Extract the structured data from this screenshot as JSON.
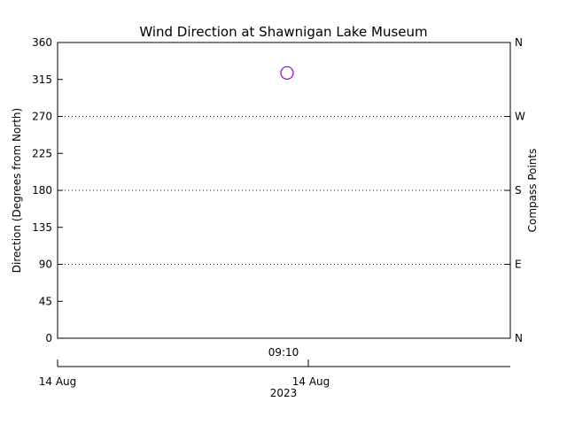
{
  "chart_data": {
    "type": "scatter",
    "title": "Wind Direction at Shawnigan Lake Museum",
    "ylabel": "Direction (Degrees from North)",
    "y2label": "Compass Points",
    "ylim": [
      0,
      360
    ],
    "yticks": [
      "0",
      "45",
      "90",
      "135",
      "180",
      "225",
      "270",
      "315",
      "360"
    ],
    "compass_ticks": [
      {
        "value": 0,
        "label": "N"
      },
      {
        "value": 90,
        "label": "E"
      },
      {
        "value": 180,
        "label": "S"
      },
      {
        "value": 270,
        "label": "W"
      },
      {
        "value": 360,
        "label": "N"
      }
    ],
    "gridlines_at": [
      90,
      180,
      270
    ],
    "grid_style": "dotted",
    "time_label": "09:10",
    "date_axis": {
      "labels": [
        "14 Aug",
        "14 Aug"
      ],
      "year": "2023"
    },
    "points": [
      {
        "time": "09:10",
        "direction": 323
      }
    ],
    "marker": "circle",
    "colors": {
      "marker": "#9900cc",
      "axes": "#000000"
    }
  }
}
